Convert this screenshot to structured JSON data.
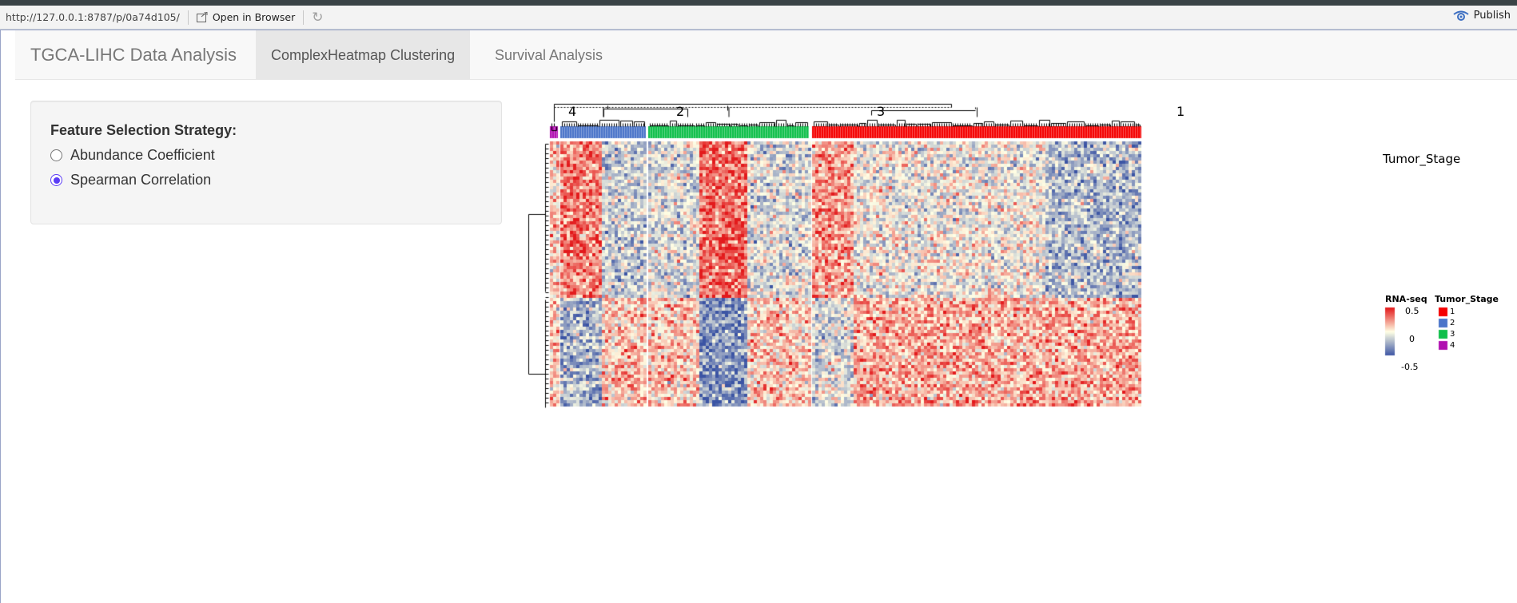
{
  "browser": {
    "url": "http://127.0.0.1:8787/p/0a74d105/",
    "open_in_browser": "Open in Browser",
    "publish": "Publish"
  },
  "navbar": {
    "brand": "TGCA-LIHC Data Analysis",
    "tabs": [
      {
        "label": "ComplexHeatmap Clustering",
        "active": true
      },
      {
        "label": "Survival Analysis",
        "active": false
      }
    ]
  },
  "sidebar": {
    "title": "Feature Selection Strategy:",
    "options": [
      {
        "label": "Abundance Coefficient",
        "selected": false
      },
      {
        "label": "Spearman Correlation",
        "selected": true
      }
    ]
  },
  "heatmap": {
    "column_split_labels": [
      "4",
      "2",
      "3",
      "1"
    ],
    "annotation_name": "Tumor_Stage",
    "legend_expression_title": "RNA-seq",
    "legend_expression_ticks": [
      "0.5",
      "0",
      "-0.5"
    ],
    "legend_stage_title": "Tumor_Stage",
    "legend_stage_items": [
      "1",
      "2",
      "3",
      "4"
    ],
    "stage_colors": {
      "1": "#f50000",
      "2": "#4a74c9",
      "3": "#0fbf4a",
      "4": "#b00fb0"
    },
    "color_scale": {
      "low": "#3b54a4",
      "mid": "#ffffe5",
      "high": "#e31a1c"
    }
  }
}
